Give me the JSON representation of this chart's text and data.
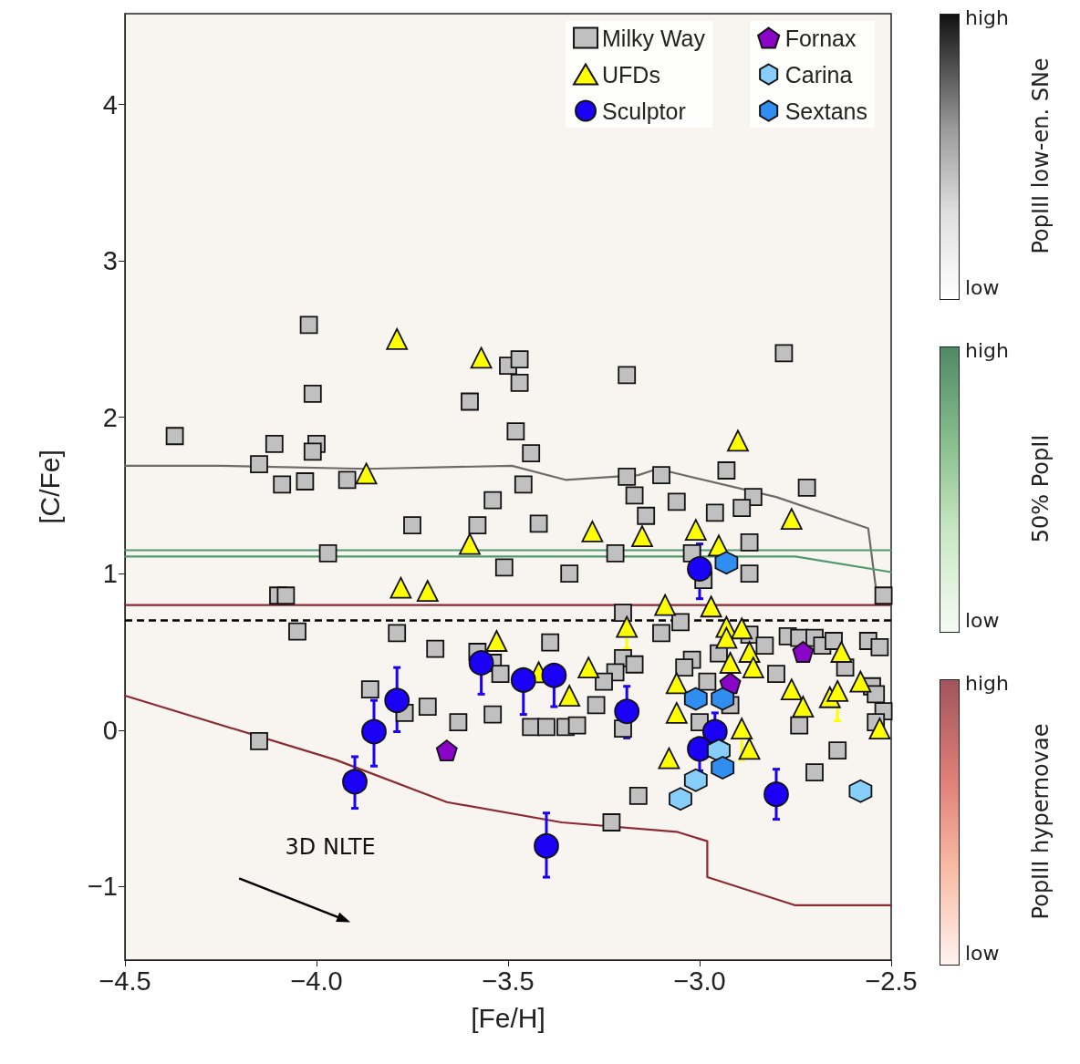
{
  "chart_data": {
    "type": "scatter",
    "xlabel": "[Fe/H]",
    "ylabel": "[C/Fe]",
    "xlim": [
      -4.5,
      -2.5
    ],
    "ylim": [
      -1.47,
      4.58
    ],
    "xticks": [
      {
        "value": -4.5,
        "label": "−4.5"
      },
      {
        "value": -4,
        "label": "−4.0"
      },
      {
        "value": -3.5,
        "label": "−3.5"
      },
      {
        "value": -3,
        "label": "−3.0"
      },
      {
        "value": -2.5,
        "label": "−2.5"
      }
    ],
    "yticks": [
      {
        "value": -1,
        "label": "−1"
      },
      0,
      1,
      2,
      3,
      4
    ],
    "grid": false,
    "legend": "top right",
    "ref_lines": [
      {
        "axis": "y",
        "value": 0.7,
        "color": "#000000",
        "line_style": "dashed"
      }
    ],
    "annotations": [
      "3D NLTE",
      "high",
      "low",
      "PopIII low-en. SNe",
      "high",
      "low",
      "50% PopII",
      "high",
      "low",
      "PopIII hypernovae"
    ],
    "series": [
      {
        "type": "line",
        "color": "#6e6a68",
        "marker": "none",
        "line_style": "solid",
        "x": [
          -4.5,
          -4.25,
          -3.87,
          -3.49,
          -3.35,
          -3.16,
          -3.11,
          -2.8,
          -2.56,
          -2.54,
          -2.5
        ],
        "values": [
          1.69,
          1.69,
          1.67,
          1.69,
          1.6,
          1.63,
          1.67,
          1.49,
          1.29,
          0.91,
          0.89
        ]
      },
      {
        "type": "line",
        "color": "#4f9a6c",
        "marker": "none",
        "line_style": "solid",
        "x": [
          -4.5,
          -2.5
        ],
        "values": [
          1.15,
          1.15
        ]
      },
      {
        "type": "line",
        "color": "#4f9a6c",
        "marker": "none",
        "line_style": "solid",
        "x": [
          -4.5,
          -2.75,
          -2.5
        ],
        "values": [
          1.11,
          1.11,
          1.01
        ]
      },
      {
        "type": "line",
        "color": "#8b2a30",
        "marker": "none",
        "line_style": "solid",
        "x": [
          -4.5,
          -2.5
        ],
        "values": [
          0.8,
          0.8
        ]
      },
      {
        "type": "line",
        "color": "#8b2a30",
        "marker": "none",
        "line_style": "solid",
        "x": [
          -4.5,
          -3.95,
          -3.66,
          -3.36,
          -3.06,
          -2.98,
          -2.98,
          -2.75,
          -2.5
        ],
        "values": [
          0.22,
          -0.19,
          -0.46,
          -0.59,
          -0.65,
          -0.71,
          -0.94,
          -1.12,
          -1.12
        ]
      },
      {
        "name": "Milky Way",
        "color": "#c0c0c0",
        "marker": "square",
        "x": [
          -4.02,
          -4.01,
          -4.37,
          -4.11,
          -4.0,
          -4.01,
          -4.15,
          -4.09,
          -4.03,
          -3.92,
          -3.54,
          -3.75,
          -3.58,
          -3.97,
          -3.51,
          -4.1,
          -4.08,
          -4.05,
          -3.79,
          -3.69,
          -3.86,
          -3.77,
          -3.71,
          -3.63,
          -3.54,
          -4.15,
          -3.58,
          -3.54,
          -3.52,
          -3.6,
          -3.5,
          -3.47,
          -3.47,
          -3.48,
          -3.44,
          -3.46,
          -3.42,
          -3.19,
          -3.19,
          -3.1,
          -2.93,
          -2.72,
          -3.17,
          -3.06,
          -2.86,
          -2.89,
          -2.96,
          -3.14,
          -2.87,
          -3.22,
          -3.02,
          -3.34,
          -2.87,
          -2.99,
          -2.52,
          -2.78,
          -3.2,
          -3.05,
          -3.1,
          -3.39,
          -3.2,
          -3.17,
          -3.22,
          -3.25,
          -3.27,
          -3.44,
          -3.4,
          -3.35,
          -3.32,
          -3.2,
          -3.02,
          -3.04,
          -2.98,
          -2.95,
          -2.87,
          -2.83,
          -2.8,
          -2.92,
          -3.0,
          -2.77,
          -2.74,
          -2.7,
          -2.68,
          -2.65,
          -2.62,
          -2.56,
          -2.53,
          -2.55,
          -2.54,
          -2.52,
          -2.54,
          -2.74,
          -2.64,
          -2.7,
          -3.16,
          -3.23
        ],
        "values": [
          2.59,
          2.15,
          1.88,
          1.83,
          1.83,
          1.78,
          1.7,
          1.57,
          1.59,
          1.6,
          1.47,
          1.31,
          1.31,
          1.13,
          1.04,
          0.86,
          0.86,
          0.63,
          0.62,
          0.52,
          0.26,
          0.11,
          0.15,
          0.05,
          0.1,
          -0.07,
          0.5,
          0.43,
          0.36,
          2.1,
          2.33,
          2.37,
          2.22,
          1.91,
          1.77,
          1.57,
          1.32,
          2.27,
          1.62,
          1.63,
          1.66,
          1.55,
          1.5,
          1.46,
          1.49,
          1.42,
          1.39,
          1.37,
          1.2,
          1.13,
          1.13,
          1.0,
          1.0,
          0.96,
          0.86,
          2.41,
          0.75,
          0.69,
          0.62,
          0.56,
          0.46,
          0.42,
          0.37,
          0.31,
          0.16,
          0.02,
          0.02,
          0.02,
          0.03,
          0.01,
          0.45,
          0.4,
          0.31,
          0.49,
          0.61,
          0.54,
          0.36,
          0.16,
          0.05,
          0.6,
          0.59,
          0.59,
          0.54,
          0.57,
          0.4,
          0.57,
          0.53,
          0.28,
          0.23,
          0.12,
          0.05,
          0.03,
          -0.13,
          -0.27,
          -0.42,
          -0.59
        ]
      },
      {
        "name": "UFDs",
        "color": "#ffff00",
        "marker": "triangle",
        "x": [
          -3.79,
          -3.57,
          -3.87,
          -3.6,
          -3.78,
          -3.71,
          -3.28,
          -3.15,
          -3.01,
          -2.95,
          -2.9,
          -2.76,
          -3.09,
          -2.97,
          -3.19,
          -2.93,
          -2.89,
          -2.93,
          -2.87,
          -2.92,
          -2.86,
          -3.29,
          -3.42,
          -3.53,
          -3.34,
          -3.06,
          -3.06,
          -2.76,
          -2.73,
          -2.66,
          -2.64,
          -2.58,
          -2.63,
          -2.89,
          -2.87,
          -3.08,
          -2.53
        ],
        "values": [
          2.5,
          2.38,
          1.64,
          1.19,
          0.91,
          0.89,
          1.27,
          1.24,
          1.28,
          1.18,
          1.85,
          1.35,
          0.8,
          0.79,
          0.66,
          0.66,
          0.65,
          0.59,
          0.5,
          0.43,
          0.4,
          0.4,
          0.37,
          0.57,
          0.22,
          0.3,
          0.11,
          0.26,
          0.15,
          0.21,
          0.25,
          0.31,
          0.5,
          0.01,
          -0.12,
          -0.18,
          0.01
        ],
        "errors": [
          null,
          null,
          null,
          null,
          null,
          null,
          null,
          null,
          null,
          null,
          null,
          null,
          null,
          null,
          [
            0.52,
            0.66
          ],
          null,
          null,
          null,
          null,
          null,
          null,
          null,
          null,
          null,
          null,
          null,
          null,
          null,
          null,
          null,
          [
            0.06,
            0.25
          ],
          null,
          null,
          [
            -0.19,
            0.01
          ],
          null,
          null,
          null
        ]
      },
      {
        "name": "Sculptor",
        "color": "#1a00f5",
        "marker": "circle",
        "x": [
          -3.9,
          -3.85,
          -3.79,
          -3.57,
          -3.46,
          -3.38,
          -3.19,
          -3.0,
          -2.96,
          -3.0,
          -2.8,
          -3.4
        ],
        "values": [
          -0.33,
          -0.01,
          0.19,
          0.43,
          0.32,
          0.35,
          0.12,
          1.03,
          -0.01,
          -0.12,
          -0.41,
          -0.74
        ],
        "errors": [
          [
            -0.5,
            -0.17
          ],
          [
            -0.23,
            0.19
          ],
          [
            -0.01,
            0.4
          ],
          [
            0.23,
            0.43
          ],
          [
            0.1,
            0.32
          ],
          [
            0.15,
            0.35
          ],
          [
            -0.05,
            0.28
          ],
          [
            0.84,
            1.19
          ],
          [
            -0.01,
            0.11
          ],
          [
            -0.26,
            -0.12
          ],
          [
            -0.57,
            -0.25
          ],
          [
            -0.94,
            -0.53
          ]
        ]
      },
      {
        "name": "Fornax",
        "color": "#8a05c8",
        "x": [
          -3.66,
          -2.92,
          -2.73
        ],
        "values": [
          -0.13,
          0.3,
          0.5
        ]
      },
      {
        "name": "Carina",
        "color": "#87cefa",
        "x": [
          -2.95,
          -3.01,
          -3.05,
          -2.58
        ],
        "values": [
          -0.13,
          -0.32,
          -0.44,
          -0.39
        ]
      },
      {
        "name": "Sextans",
        "color": "#2f8ef0",
        "x": [
          -2.93,
          -3.01,
          -2.94,
          -2.94
        ],
        "values": [
          1.07,
          0.2,
          0.2,
          -0.24
        ]
      }
    ]
  }
}
